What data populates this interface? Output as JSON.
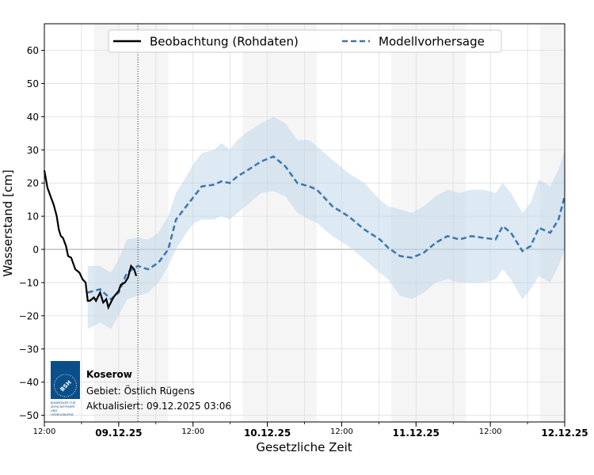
{
  "chart_data": {
    "type": "line",
    "xlabel": "Gesetzliche Zeit",
    "ylabel": "Wasserstand [cm]",
    "xlim": [
      "2025-12-08T12:00",
      "2025-12-12T00:00"
    ],
    "ylim": [
      -52,
      68
    ],
    "grid": true,
    "legend_placement": "top-center",
    "y_ticks": [
      -50,
      -40,
      -30,
      -20,
      -10,
      0,
      10,
      20,
      30,
      40,
      50,
      60
    ],
    "x_ticks": [
      {
        "t": "2025-12-08T12:00",
        "label": "12:00",
        "bold": false
      },
      {
        "t": "2025-12-09T00:00",
        "label": "09.12.25",
        "bold": true
      },
      {
        "t": "2025-12-09T12:00",
        "label": "12:00",
        "bold": false
      },
      {
        "t": "2025-12-10T00:00",
        "label": "10.12.25",
        "bold": true
      },
      {
        "t": "2025-12-10T12:00",
        "label": "12:00",
        "bold": false
      },
      {
        "t": "2025-12-11T00:00",
        "label": "11.12.25",
        "bold": true
      },
      {
        "t": "2025-12-11T12:00",
        "label": "12:00",
        "bold": false
      },
      {
        "t": "2025-12-12T00:00",
        "label": "12.12.25",
        "bold": true
      }
    ],
    "night_shading": [
      [
        "2025-12-08T20:00",
        "2025-12-09T08:00"
      ],
      [
        "2025-12-09T20:00",
        "2025-12-10T08:00"
      ],
      [
        "2025-12-10T20:00",
        "2025-12-11T08:00"
      ],
      [
        "2025-12-11T20:00",
        "2025-12-12T00:00"
      ]
    ],
    "now_marker": "2025-12-09T03:06",
    "series": [
      {
        "name": "Beobachtung (Rohdaten)",
        "color": "#000000",
        "style": "solid",
        "points": [
          [
            "2025-12-08T12:00",
            23.8
          ],
          [
            "2025-12-08T12:30",
            18.6
          ],
          [
            "2025-12-08T13:00",
            16
          ],
          [
            "2025-12-08T13:30",
            13.5
          ],
          [
            "2025-12-08T14:00",
            10
          ],
          [
            "2025-12-08T14:20",
            6
          ],
          [
            "2025-12-08T14:40",
            4
          ],
          [
            "2025-12-08T15:00",
            3.5
          ],
          [
            "2025-12-08T15:30",
            1
          ],
          [
            "2025-12-08T15:50",
            -2
          ],
          [
            "2025-12-08T16:20",
            -2.5
          ],
          [
            "2025-12-08T17:00",
            -6
          ],
          [
            "2025-12-08T17:40",
            -7
          ],
          [
            "2025-12-08T18:10",
            -9
          ],
          [
            "2025-12-08T18:40",
            -10
          ],
          [
            "2025-12-08T19:00",
            -15.5
          ],
          [
            "2025-12-08T19:20",
            -15.5
          ],
          [
            "2025-12-08T20:00",
            -14.5
          ],
          [
            "2025-12-08T20:20",
            -15.5
          ],
          [
            "2025-12-08T21:00",
            -13
          ],
          [
            "2025-12-08T21:30",
            -16
          ],
          [
            "2025-12-08T22:00",
            -15
          ],
          [
            "2025-12-08T22:20",
            -17.5
          ],
          [
            "2025-12-08T23:00",
            -15
          ],
          [
            "2025-12-08T23:20",
            -14
          ],
          [
            "2025-12-09T00:00",
            -12.5
          ],
          [
            "2025-12-09T00:20",
            -10.7
          ],
          [
            "2025-12-09T01:00",
            -10
          ],
          [
            "2025-12-09T01:30",
            -8.5
          ],
          [
            "2025-12-09T02:00",
            -5
          ],
          [
            "2025-12-09T02:30",
            -6
          ],
          [
            "2025-12-09T02:50",
            -8
          ]
        ]
      },
      {
        "name": "Modellvorhersage",
        "color": "#3a76b0",
        "style": "dashed",
        "band_color": "#bcd3e8",
        "points": [
          [
            "2025-12-08T19:00",
            -13,
            -24,
            -5
          ],
          [
            "2025-12-08T21:00",
            -12,
            -22,
            -5
          ],
          [
            "2025-12-08T22:45",
            -15,
            -24,
            -7
          ],
          [
            "2025-12-09T00:00",
            -13,
            -20,
            -3
          ],
          [
            "2025-12-09T01:20",
            -7,
            -15,
            3
          ],
          [
            "2025-12-09T03:06",
            -5,
            -14,
            3.5
          ],
          [
            "2025-12-09T04:45",
            -6,
            -13,
            3
          ],
          [
            "2025-12-09T06:25",
            -4,
            -10,
            5
          ],
          [
            "2025-12-09T08:00",
            0,
            -5,
            10
          ],
          [
            "2025-12-09T09:15",
            9,
            0,
            17
          ],
          [
            "2025-12-09T10:55",
            13,
            5,
            22
          ],
          [
            "2025-12-09T12:10",
            16,
            8,
            26
          ],
          [
            "2025-12-09T13:25",
            19,
            9,
            29
          ],
          [
            "2025-12-09T15:25",
            19.5,
            9,
            30
          ],
          [
            "2025-12-09T16:35",
            20.5,
            10,
            32
          ],
          [
            "2025-12-09T17:55",
            20,
            9,
            30
          ],
          [
            "2025-12-09T19:10",
            22,
            11,
            33
          ],
          [
            "2025-12-09T20:30",
            23.5,
            13,
            35
          ],
          [
            "2025-12-09T23:00",
            26.5,
            17,
            38
          ],
          [
            "2025-12-10T01:00",
            28,
            17.5,
            40
          ],
          [
            "2025-12-10T02:55",
            25,
            16,
            38
          ],
          [
            "2025-12-10T04:50",
            20,
            11,
            33
          ],
          [
            "2025-12-10T06:45",
            19,
            9,
            33
          ],
          [
            "2025-12-10T08:00",
            18,
            8,
            31
          ],
          [
            "2025-12-10T10:30",
            13,
            4,
            27
          ],
          [
            "2025-12-10T13:05",
            10,
            1,
            23
          ],
          [
            "2025-12-10T15:40",
            6,
            -3,
            20
          ],
          [
            "2025-12-10T18:10",
            3,
            -7,
            15
          ],
          [
            "2025-12-10T19:30",
            0.5,
            -9,
            13
          ],
          [
            "2025-12-10T21:25",
            -2,
            -14,
            12
          ],
          [
            "2025-12-10T23:20",
            -2.5,
            -15,
            11
          ],
          [
            "2025-12-11T01:15",
            -1,
            -13,
            13
          ],
          [
            "2025-12-11T03:10",
            2,
            -10,
            16
          ],
          [
            "2025-12-11T05:05",
            4,
            -9,
            18
          ],
          [
            "2025-12-11T07:00",
            3,
            -10,
            17
          ],
          [
            "2025-12-11T08:55",
            4,
            -10,
            18
          ],
          [
            "2025-12-11T10:50",
            3.5,
            -10,
            18
          ],
          [
            "2025-12-11T12:50",
            3,
            -9,
            17
          ],
          [
            "2025-12-11T14:00",
            7,
            -6,
            20
          ],
          [
            "2025-12-11T15:20",
            5,
            -9,
            17
          ],
          [
            "2025-12-11T17:10",
            -0.5,
            -15,
            11
          ],
          [
            "2025-12-11T18:30",
            1,
            -12,
            14
          ],
          [
            "2025-12-11T19:50",
            6.5,
            -8,
            21
          ],
          [
            "2025-12-11T21:40",
            5,
            -10,
            19
          ],
          [
            "2025-12-11T23:00",
            9,
            -5,
            24
          ],
          [
            "2025-12-12T00:00",
            16,
            0,
            30
          ]
        ]
      }
    ]
  },
  "info": {
    "station": "Koserow",
    "area": "Gebiet: Östlich Rügens",
    "updated": "Aktualisiert: 09.12.2025 03:06",
    "logo_text": "BSH",
    "logo_caption": "BUNDESAMT FÜR SEESCHIFFFAHRT UND HYDROGRAPHIE"
  }
}
